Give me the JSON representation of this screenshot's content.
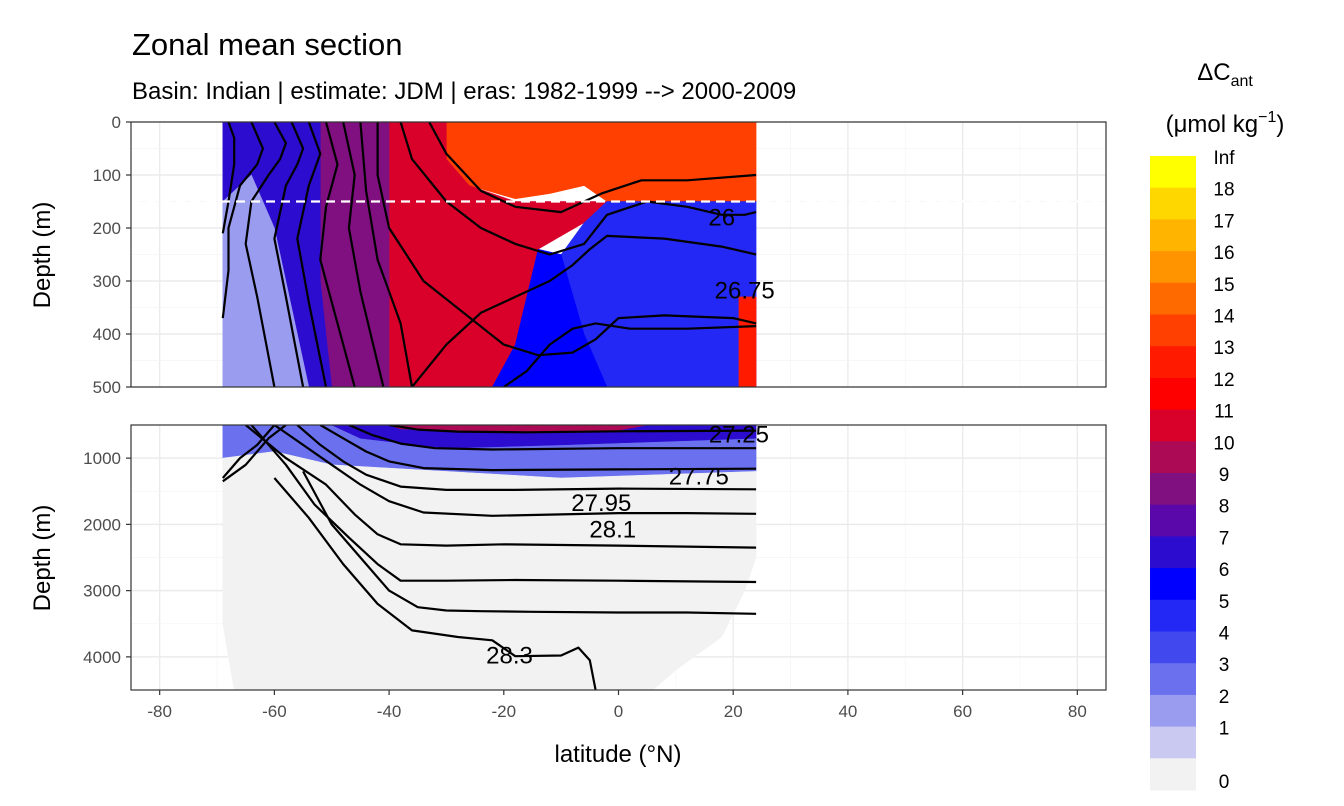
{
  "chart_data": {
    "type": "heatmap",
    "title": "Zonal mean section",
    "subtitle": "Basin: Indian | estimate: JDM  | eras: 1982-1999 --> 2000-2009",
    "xlabel": "latitude (°N)",
    "ylabel": "Depth (m)",
    "xlim": [
      -85,
      85
    ],
    "x_ticks": [
      -80,
      -60,
      -40,
      -20,
      0,
      20,
      40,
      60,
      80
    ],
    "x_tick_labels": [
      "-80",
      "-60",
      "-40",
      "-20",
      "0",
      "20",
      "40",
      "60",
      "80"
    ],
    "data_lat_range": [
      -69,
      24
    ],
    "reference_depth_line": 150,
    "panels": [
      {
        "name": "upper",
        "ylim": [
          0,
          500
        ],
        "y_ticks": [
          0,
          100,
          200,
          300,
          400,
          500
        ],
        "y_tick_labels": [
          "0",
          "100",
          "200",
          "300",
          "400",
          "500"
        ]
      },
      {
        "name": "lower",
        "ylim": [
          500,
          4500
        ],
        "y_ticks": [
          1000,
          2000,
          3000,
          4000
        ],
        "y_tick_labels": [
          "1000",
          "2000",
          "3000",
          "4000"
        ]
      }
    ],
    "legend": {
      "title_main": "ΔC",
      "title_sub": "ant",
      "unit_text": "(μmol kg",
      "unit_sup": "−1",
      "unit_close": ")",
      "position": "right",
      "labels": [
        "Inf",
        "18",
        "17",
        "16",
        "15",
        "14",
        "13",
        "12",
        "11",
        "10",
        "9",
        "8",
        "7",
        "6",
        "5",
        "4",
        "3",
        "2",
        "1",
        "0"
      ],
      "colors": [
        "#ffff00",
        "#ffd700",
        "#ffb400",
        "#ff9400",
        "#ff6a00",
        "#ff4000",
        "#ff1a00",
        "#ff0000",
        "#d9002a",
        "#ad0a55",
        "#80107f",
        "#5a08aa",
        "#2c0cce",
        "#0000ff",
        "#2428f4",
        "#4048ee",
        "#6a70ee",
        "#9a9cef",
        "#c9c9f2",
        "#f2f2f2"
      ]
    },
    "isopycnals": [
      {
        "label": "26",
        "lat": 18,
        "depth": 180
      },
      {
        "label": "26.75",
        "lat": 22,
        "depth": 318
      },
      {
        "label": "27.25",
        "lat": 21,
        "depth": 640
      },
      {
        "label": "27.75",
        "lat": 14,
        "depth": 1280
      },
      {
        "label": "27.95",
        "lat": -3,
        "depth": 1680
      },
      {
        "label": "28.1",
        "lat": -1,
        "depth": 2080
      },
      {
        "label": "28.3",
        "lat": -19,
        "depth": 3980
      }
    ],
    "regions": [
      {
        "panel": "upper",
        "level": "14",
        "poly": [
          [
            -30,
            0
          ],
          [
            24,
            0
          ],
          [
            24,
            150
          ],
          [
            -2,
            150
          ],
          [
            -6,
            120
          ],
          [
            -12,
            135
          ],
          [
            -18,
            145
          ],
          [
            -26,
            120
          ],
          [
            -30,
            70
          ]
        ]
      },
      {
        "panel": "upper",
        "level": "11",
        "poly": [
          [
            -40,
            0
          ],
          [
            -30,
            0
          ],
          [
            -30,
            70
          ],
          [
            -26,
            120
          ],
          [
            -18,
            150
          ],
          [
            -2,
            150
          ],
          [
            -6,
            190
          ],
          [
            -14,
            240
          ],
          [
            -16,
            330
          ],
          [
            -18,
            420
          ],
          [
            -22,
            500
          ],
          [
            -40,
            500
          ]
        ]
      },
      {
        "panel": "upper",
        "level": "9",
        "poly": [
          [
            -52,
            0
          ],
          [
            -40,
            0
          ],
          [
            -40,
            500
          ],
          [
            -50,
            500
          ],
          [
            -52,
            300
          ]
        ]
      },
      {
        "panel": "upper",
        "level": "7",
        "poly": [
          [
            -69,
            0
          ],
          [
            -52,
            0
          ],
          [
            -52,
            300
          ],
          [
            -50,
            500
          ],
          [
            -54,
            500
          ],
          [
            -60,
            200
          ],
          [
            -64,
            100
          ],
          [
            -69,
            150
          ]
        ]
      },
      {
        "panel": "upper",
        "level": "5",
        "poly": [
          [
            -2,
            150
          ],
          [
            24,
            150
          ],
          [
            24,
            500
          ],
          [
            -2,
            500
          ],
          [
            -6,
            400
          ],
          [
            -10,
            250
          ],
          [
            -6,
            190
          ]
        ]
      },
      {
        "panel": "upper",
        "level": "2",
        "poly": [
          [
            -69,
            150
          ],
          [
            -64,
            100
          ],
          [
            -60,
            200
          ],
          [
            -54,
            500
          ],
          [
            -69,
            500
          ]
        ]
      },
      {
        "panel": "upper",
        "level": "6",
        "poly": [
          [
            -22,
            500
          ],
          [
            -18,
            420
          ],
          [
            -16,
            330
          ],
          [
            -14,
            240
          ],
          [
            -10,
            250
          ],
          [
            -6,
            400
          ],
          [
            -2,
            500
          ]
        ]
      },
      {
        "panel": "upper",
        "level": "13",
        "poly": [
          [
            21,
            330
          ],
          [
            24,
            330
          ],
          [
            24,
            500
          ],
          [
            21,
            500
          ]
        ]
      },
      {
        "panel": "lower",
        "level": "3",
        "poly": [
          [
            -69,
            500
          ],
          [
            24,
            500
          ],
          [
            24,
            1200
          ],
          [
            -10,
            1300
          ],
          [
            -30,
            1200
          ],
          [
            -50,
            1100
          ],
          [
            -60,
            900
          ],
          [
            -69,
            1000
          ]
        ]
      },
      {
        "panel": "lower",
        "level": "7",
        "poly": [
          [
            -50,
            500
          ],
          [
            24,
            500
          ],
          [
            24,
            700
          ],
          [
            -10,
            800
          ],
          [
            -30,
            850
          ],
          [
            -45,
            700
          ]
        ]
      },
      {
        "panel": "lower",
        "level": "10",
        "poly": [
          [
            -40,
            500
          ],
          [
            5,
            500
          ],
          [
            0,
            580
          ],
          [
            -20,
            600
          ],
          [
            -38,
            560
          ]
        ]
      },
      {
        "panel": "lower",
        "level": "0",
        "poly": [
          [
            -69,
            1000
          ],
          [
            -60,
            900
          ],
          [
            -50,
            1100
          ],
          [
            -30,
            1200
          ],
          [
            -10,
            1300
          ],
          [
            24,
            1200
          ],
          [
            24,
            2500
          ],
          [
            22,
            3000
          ],
          [
            18,
            3700
          ],
          [
            10,
            4200
          ],
          [
            6,
            4500
          ],
          [
            -67,
            4500
          ],
          [
            -69,
            3500
          ]
        ]
      }
    ],
    "contours_upper": [
      [
        [
          -68,
          0
        ],
        [
          -67,
          30
        ],
        [
          -67,
          80
        ],
        [
          -68,
          150
        ],
        [
          -69,
          210
        ]
      ],
      [
        [
          -64,
          0
        ],
        [
          -62,
          50
        ],
        [
          -63,
          80
        ],
        [
          -66,
          120
        ],
        [
          -68,
          200
        ],
        [
          -68,
          280
        ],
        [
          -69,
          370
        ]
      ],
      [
        [
          -60,
          0
        ],
        [
          -58,
          40
        ],
        [
          -59,
          70
        ],
        [
          -61,
          100
        ],
        [
          -64,
          150
        ],
        [
          -65,
          230
        ],
        [
          -63,
          330
        ],
        [
          -60,
          500
        ]
      ],
      [
        [
          -57,
          0
        ],
        [
          -55,
          50
        ],
        [
          -56,
          80
        ],
        [
          -58,
          120
        ],
        [
          -60,
          220
        ],
        [
          -58,
          330
        ],
        [
          -55,
          500
        ]
      ],
      [
        [
          -54,
          0
        ],
        [
          -52,
          60
        ],
        [
          -54,
          120
        ],
        [
          -56,
          220
        ],
        [
          -54,
          340
        ],
        [
          -51,
          500
        ]
      ],
      [
        [
          -51,
          0
        ],
        [
          -49,
          80
        ],
        [
          -51,
          160
        ],
        [
          -52,
          260
        ],
        [
          -49,
          380
        ],
        [
          -46,
          500
        ]
      ],
      [
        [
          -48,
          0
        ],
        [
          -46,
          100
        ],
        [
          -47,
          200
        ],
        [
          -45,
          320
        ],
        [
          -41,
          500
        ]
      ],
      [
        [
          -45,
          0
        ],
        [
          -44,
          130
        ],
        [
          -42,
          260
        ],
        [
          -38,
          380
        ],
        [
          -36,
          500
        ]
      ],
      [
        [
          -42,
          0
        ],
        [
          -42,
          100
        ],
        [
          -40,
          200
        ],
        [
          -34,
          300
        ],
        [
          -27,
          360
        ],
        [
          -20,
          420
        ],
        [
          -14,
          440
        ],
        [
          -8,
          435
        ],
        [
          -4,
          410
        ],
        [
          0,
          370
        ],
        [
          8,
          365
        ],
        [
          20,
          370
        ],
        [
          24,
          380
        ]
      ],
      [
        [
          -38,
          0
        ],
        [
          -36,
          70
        ],
        [
          -30,
          150
        ],
        [
          -24,
          200
        ],
        [
          -18,
          230
        ],
        [
          -12,
          250
        ],
        [
          -6,
          230
        ],
        [
          -2,
          175
        ],
        [
          5,
          150
        ],
        [
          12,
          160
        ],
        [
          18,
          175
        ],
        [
          22,
          175
        ],
        [
          24,
          170
        ]
      ],
      [
        [
          -33,
          0
        ],
        [
          -30,
          60
        ],
        [
          -24,
          130
        ],
        [
          -18,
          160
        ],
        [
          -10,
          170
        ],
        [
          -3,
          135
        ],
        [
          4,
          110
        ],
        [
          12,
          110
        ],
        [
          24,
          100
        ]
      ],
      [
        [
          -36,
          500
        ],
        [
          -30,
          420
        ],
        [
          -24,
          360
        ],
        [
          -18,
          330
        ],
        [
          -12,
          300
        ],
        [
          -8,
          270
        ],
        [
          -5,
          240
        ],
        [
          -2,
          215
        ],
        [
          8,
          220
        ],
        [
          18,
          235
        ],
        [
          24,
          250
        ]
      ],
      [
        [
          -20,
          500
        ],
        [
          -16,
          470
        ],
        [
          -12,
          420
        ],
        [
          -8,
          390
        ],
        [
          -4,
          380
        ],
        [
          2,
          390
        ],
        [
          12,
          390
        ],
        [
          24,
          385
        ]
      ]
    ],
    "contours_lower": [
      [
        [
          -69,
          1350
        ],
        [
          -65,
          1100
        ],
        [
          -61,
          700
        ],
        [
          -58,
          500
        ]
      ],
      [
        [
          -69,
          1300
        ],
        [
          -66,
          1000
        ],
        [
          -63,
          800
        ],
        [
          -60,
          500
        ]
      ],
      [
        [
          -60,
          500
        ],
        [
          -55,
          800
        ],
        [
          -50,
          1100
        ],
        [
          -45,
          1400
        ],
        [
          -40,
          1650
        ],
        [
          -34,
          1820
        ],
        [
          -22,
          1870
        ],
        [
          -10,
          1850
        ],
        [
          0,
          1830
        ],
        [
          12,
          1830
        ],
        [
          24,
          1840
        ]
      ],
      [
        [
          -56,
          500
        ],
        [
          -52,
          800
        ],
        [
          -48,
          1050
        ],
        [
          -44,
          1250
        ],
        [
          -38,
          1430
        ],
        [
          -30,
          1480
        ],
        [
          -18,
          1480
        ],
        [
          0,
          1460
        ],
        [
          24,
          1470
        ]
      ],
      [
        [
          -52,
          500
        ],
        [
          -48,
          700
        ],
        [
          -44,
          900
        ],
        [
          -40,
          1050
        ],
        [
          -34,
          1150
        ],
        [
          -22,
          1180
        ],
        [
          0,
          1170
        ],
        [
          24,
          1160
        ]
      ],
      [
        [
          -47,
          500
        ],
        [
          -43,
          650
        ],
        [
          -38,
          780
        ],
        [
          -32,
          850
        ],
        [
          -22,
          870
        ],
        [
          0,
          850
        ],
        [
          24,
          850
        ]
      ],
      [
        [
          -40,
          500
        ],
        [
          -35,
          570
        ],
        [
          -28,
          600
        ],
        [
          -16,
          610
        ],
        [
          0,
          595
        ],
        [
          24,
          585
        ]
      ],
      [
        [
          -65,
          500
        ],
        [
          -58,
          1000
        ],
        [
          -51,
          1400
        ],
        [
          -46,
          1850
        ],
        [
          -42,
          2150
        ],
        [
          -38,
          2300
        ],
        [
          -30,
          2320
        ],
        [
          -20,
          2300
        ],
        [
          0,
          2320
        ],
        [
          24,
          2350
        ]
      ],
      [
        [
          -64,
          500
        ],
        [
          -58,
          1100
        ],
        [
          -53,
          1700
        ],
        [
          -47,
          2200
        ],
        [
          -42,
          2600
        ],
        [
          -38,
          2850
        ],
        [
          -30,
          2850
        ],
        [
          -18,
          2840
        ],
        [
          0,
          2850
        ],
        [
          24,
          2870
        ]
      ],
      [
        [
          -55,
          1200
        ],
        [
          -50,
          2000
        ],
        [
          -45,
          2500
        ],
        [
          -40,
          3000
        ],
        [
          -35,
          3250
        ],
        [
          -30,
          3300
        ],
        [
          -24,
          3310
        ],
        [
          -15,
          3320
        ],
        [
          0,
          3330
        ],
        [
          12,
          3330
        ],
        [
          24,
          3350
        ]
      ],
      [
        [
          -60,
          1300
        ],
        [
          -54,
          1900
        ],
        [
          -48,
          2600
        ],
        [
          -42,
          3200
        ],
        [
          -36,
          3600
        ],
        [
          -28,
          3700
        ],
        [
          -22,
          3750
        ],
        [
          -18,
          3990
        ],
        [
          -10,
          3980
        ],
        [
          -7,
          3860
        ],
        [
          -5,
          4050
        ],
        [
          -4,
          4500
        ]
      ]
    ]
  }
}
